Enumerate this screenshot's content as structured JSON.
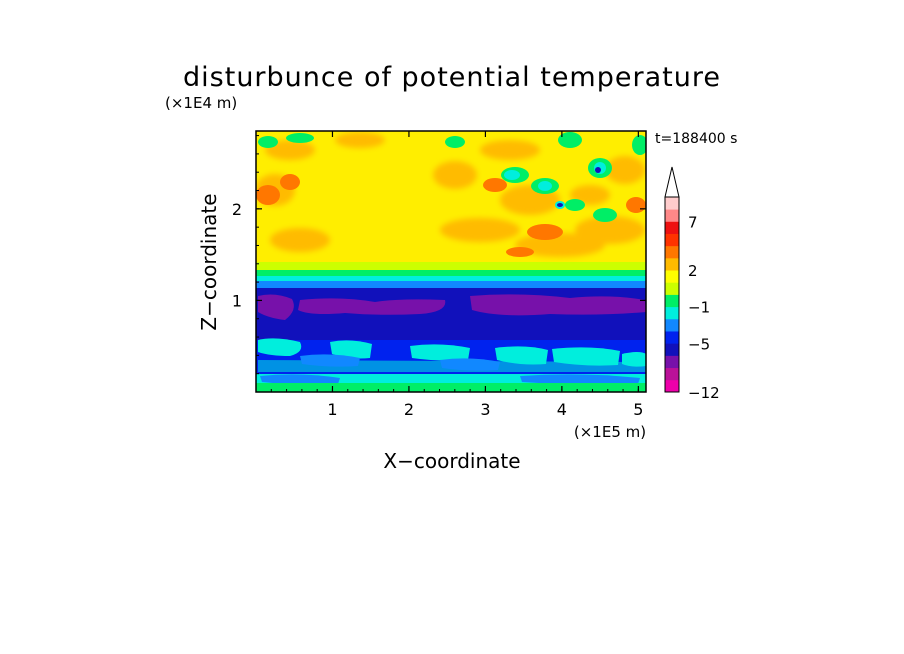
{
  "chart_data": {
    "type": "heatmap",
    "title": "disturbunce of potential temperature",
    "time_label": "t=188400 s",
    "xlabel": "X−coordinate",
    "ylabel": "Z−coordinate",
    "x_scale_label": "(×1E5 m)",
    "y_scale_label": "(×1E4 m)",
    "xlim": [
      0,
      5.1
    ],
    "ylim": [
      0,
      2.85
    ],
    "x_ticks": [
      1,
      2,
      3,
      4,
      5
    ],
    "x_tick_labels": [
      "1",
      "2",
      "3",
      "4",
      "5"
    ],
    "y_ticks": [
      1,
      2
    ],
    "y_tick_labels": [
      "1",
      "2"
    ],
    "colorbar": {
      "colors": [
        "#ee00aa",
        "#bb1199",
        "#7711aa",
        "#1111bb",
        "#0022ee",
        "#1188ff",
        "#00eedd",
        "#00ee66",
        "#ccff00",
        "#ffff00",
        "#ffbb00",
        "#ff7700",
        "#ff3300",
        "#ee1111",
        "#ff8888",
        "#ffcccc"
      ],
      "tick_labels": [
        "−12",
        "−5",
        "−1",
        "2",
        "7"
      ],
      "tick_band_edges": [
        0,
        4,
        7,
        10,
        14
      ],
      "extend_top_arrow": true
    },
    "regions": [
      {
        "z_range": [
          0,
          0.13
        ],
        "level": "cyan-green",
        "description": "ground layer"
      },
      {
        "z_range": [
          0.13,
          0.6
        ],
        "level": "cyan / blue mix"
      },
      {
        "z_range": [
          0.6,
          1.3
        ],
        "level": "dark blue with purple band near z≈1"
      },
      {
        "z_range": [
          1.3,
          1.55
        ],
        "level": "blue → cyan → green transition"
      },
      {
        "z_range": [
          1.55,
          2.85
        ],
        "level": "yellow / orange wave pattern with scattered blue-green cells"
      }
    ]
  }
}
